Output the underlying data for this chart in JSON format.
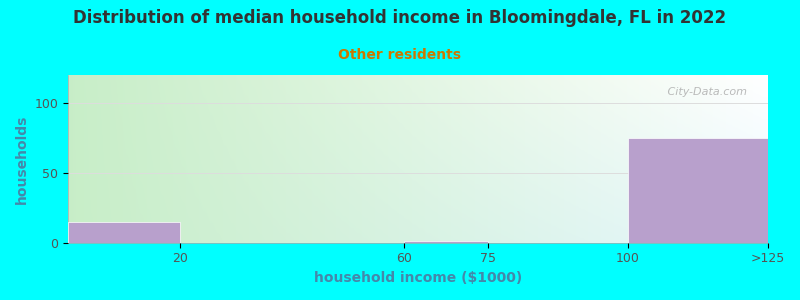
{
  "title": "Distribution of median household income in Bloomingdale, FL in 2022",
  "subtitle": "Other residents",
  "xlabel": "household income ($1000)",
  "ylabel": "households",
  "background_color": "#00FFFF",
  "plot_bg_top_left": "#C8EEC8",
  "plot_bg_top_right": "#FFFFFF",
  "plot_bg_bottom_left": "#C8EEC8",
  "plot_bg_bottom_right": "#E8F8FF",
  "bar_color": "#B8A0CC",
  "bar_edge_color": "#FFFFFF",
  "categories": [
    "20",
    "60",
    "75",
    "100",
    ">125"
  ],
  "values": [
    15,
    0,
    1,
    0,
    75
  ],
  "x_positions": [
    0,
    20,
    60,
    75,
    100,
    125
  ],
  "ylim": [
    0,
    120
  ],
  "yticks": [
    0,
    50,
    100
  ],
  "grid_color": "#DDDDDD",
  "title_color": "#333333",
  "subtitle_color": "#CC7700",
  "axis_label_color": "#4488AA",
  "tick_color": "#555555",
  "watermark": " City-Data.com"
}
